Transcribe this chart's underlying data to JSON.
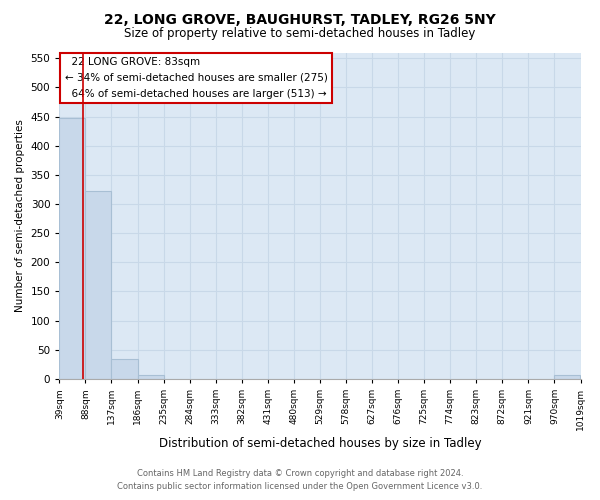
{
  "title": "22, LONG GROVE, BAUGHURST, TADLEY, RG26 5NY",
  "subtitle": "Size of property relative to semi-detached houses in Tadley",
  "xlabel": "Distribution of semi-detached houses by size in Tadley",
  "ylabel": "Number of semi-detached properties",
  "property_size": 83,
  "property_label": "22 LONG GROVE: 83sqm",
  "pct_smaller": 34,
  "pct_smaller_n": 275,
  "pct_larger": 64,
  "pct_larger_n": 513,
  "bin_edges": [
    39,
    88,
    137,
    186,
    235,
    284,
    333,
    382,
    431,
    480,
    529,
    578,
    627,
    676,
    725,
    774,
    823,
    872,
    921,
    970,
    1019
  ],
  "bar_heights": [
    447,
    322,
    35,
    7,
    0,
    0,
    0,
    0,
    0,
    0,
    0,
    0,
    0,
    0,
    0,
    0,
    0,
    0,
    0,
    7
  ],
  "bar_color": "#c8d8ea",
  "bar_edge_color": "#a8bfd4",
  "grid_color": "#c8d8e8",
  "background_color": "#dce8f4",
  "red_line_color": "#cc0000",
  "annotation_box_color": "#cc0000",
  "ylim": [
    0,
    560
  ],
  "yticks": [
    0,
    50,
    100,
    150,
    200,
    250,
    300,
    350,
    400,
    450,
    500,
    550
  ],
  "footer_text": "Contains HM Land Registry data © Crown copyright and database right 2024.\nContains public sector information licensed under the Open Government Licence v3.0."
}
